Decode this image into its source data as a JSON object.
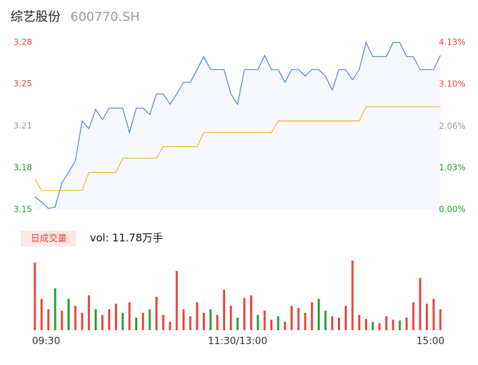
{
  "header": {
    "name": "综艺股份",
    "code": "600770.SH"
  },
  "chart_data": [
    {
      "type": "line",
      "ylim": [
        3.15,
        3.28
      ],
      "yticks": [
        3.15,
        {
          "value": 3.1824,
          "label": "3.18"
        },
        {
          "value": 3.2149,
          "label": "3.21"
        },
        {
          "value": 3.2477,
          "label": "3.25"
        },
        3.28
      ],
      "ytick_colors": [
        "#21a132",
        "#21a132",
        "#999999",
        "#e8443a",
        "#e8443a"
      ],
      "y2lim": [
        0,
        4.13
      ],
      "y2ticks": [
        {
          "value": 0,
          "label": "0.00%"
        },
        {
          "value": 1.03,
          "label": "1.03%"
        },
        {
          "value": 2.06,
          "label": "2.06%"
        },
        {
          "value": 3.1,
          "label": "3.10%"
        },
        {
          "value": 4.13,
          "label": "4.13%"
        }
      ],
      "area_fill": "#f6f8fd",
      "series": [
        {
          "color": "#4a7fe0",
          "values": [
            3.16,
            3.156,
            3.151,
            3.152,
            3.171,
            3.179,
            3.188,
            3.219,
            3.213,
            3.228,
            3.22,
            3.229,
            3.229,
            3.229,
            3.21,
            3.229,
            3.229,
            3.224,
            3.24,
            3.24,
            3.232,
            3.24,
            3.249,
            3.249,
            3.259,
            3.269,
            3.259,
            3.259,
            3.259,
            3.24,
            3.232,
            3.259,
            3.259,
            3.259,
            3.27,
            3.259,
            3.259,
            3.249,
            3.259,
            3.259,
            3.254,
            3.259,
            3.259,
            3.254,
            3.243,
            3.259,
            3.259,
            3.251,
            3.259,
            3.28,
            3.269,
            3.269,
            3.269,
            3.28,
            3.28,
            3.269,
            3.269,
            3.259,
            3.259,
            3.259,
            3.27
          ]
        },
        {
          "color": "#f0b429",
          "values": [
            3.174,
            3.165,
            3.165,
            3.165,
            3.165,
            3.165,
            3.165,
            3.165,
            3.179,
            3.179,
            3.179,
            3.179,
            3.179,
            3.19,
            3.19,
            3.19,
            3.19,
            3.19,
            3.19,
            3.199,
            3.199,
            3.199,
            3.199,
            3.199,
            3.199,
            3.21,
            3.21,
            3.21,
            3.21,
            3.21,
            3.21,
            3.21,
            3.21,
            3.21,
            3.21,
            3.21,
            3.219,
            3.219,
            3.219,
            3.219,
            3.219,
            3.219,
            3.219,
            3.219,
            3.219,
            3.219,
            3.219,
            3.219,
            3.219,
            3.23,
            3.23,
            3.23,
            3.23,
            3.23,
            3.23,
            3.23,
            3.23,
            3.23,
            3.23,
            3.23,
            3.23
          ]
        }
      ]
    },
    {
      "type": "bar",
      "badge": "日成交量",
      "summary": "vol: 11.78万手",
      "categories": [
        "09:30",
        null,
        null,
        null,
        null,
        null,
        null,
        null,
        null,
        null,
        null,
        null,
        null,
        null,
        null,
        null,
        null,
        null,
        null,
        null,
        null,
        null,
        null,
        null,
        null,
        null,
        null,
        null,
        null,
        null,
        "11:30/13:00",
        null,
        null,
        null,
        null,
        null,
        null,
        null,
        null,
        null,
        null,
        null,
        null,
        null,
        null,
        null,
        null,
        null,
        null,
        null,
        null,
        null,
        null,
        null,
        null,
        null,
        null,
        null,
        null,
        null,
        "15:00"
      ],
      "ylim": [
        0,
        8000
      ],
      "values": [
        7760,
        3600,
        2400,
        4800,
        2240,
        3600,
        2800,
        2000,
        4000,
        2400,
        1760,
        2400,
        3040,
        2000,
        3200,
        1440,
        2000,
        2400,
        3840,
        1760,
        960,
        6800,
        2400,
        1600,
        3200,
        2000,
        2400,
        1760,
        4640,
        2800,
        1440,
        3680,
        4000,
        1760,
        2240,
        1200,
        1600,
        960,
        2800,
        2560,
        2000,
        3200,
        3600,
        2240,
        1600,
        1440,
        2800,
        8000,
        1760,
        1280,
        960,
        800,
        1600,
        1200,
        1120,
        1440,
        3200,
        6000,
        3040,
        3600,
        2400
      ],
      "colors": [
        "#e8443a",
        "#e8443a",
        "#e8443a",
        "#21a132",
        "#e8443a",
        "#21a132",
        "#e8443a",
        "#e8443a",
        "#e8443a",
        "#21a132",
        "#e8443a",
        "#e8443a",
        "#e8443a",
        "#21a132",
        "#e8443a",
        "#21a132",
        "#e8443a",
        "#21a132",
        "#e8443a",
        "#e8443a",
        "#e8443a",
        "#e8443a",
        "#e8443a",
        "#e8443a",
        "#e8443a",
        "#e8443a",
        "#21a132",
        "#e8443a",
        "#e8443a",
        "#e8443a",
        "#21a132",
        "#e8443a",
        "#e8443a",
        "#21a132",
        "#e8443a",
        "#e8443a",
        "#21a132",
        "#e8443a",
        "#e8443a",
        "#e8443a",
        "#e8443a",
        "#e8443a",
        "#21a132",
        "#21a132",
        "#e8443a",
        "#e8443a",
        "#e8443a",
        "#e8443a",
        "#e8443a",
        "#e8443a",
        "#21a132",
        "#e8443a",
        "#e8443a",
        "#e8443a",
        "#21a132",
        "#e8443a",
        "#e8443a",
        "#e8443a",
        "#e8443a",
        "#e8443a",
        "#e8443a"
      ]
    }
  ]
}
